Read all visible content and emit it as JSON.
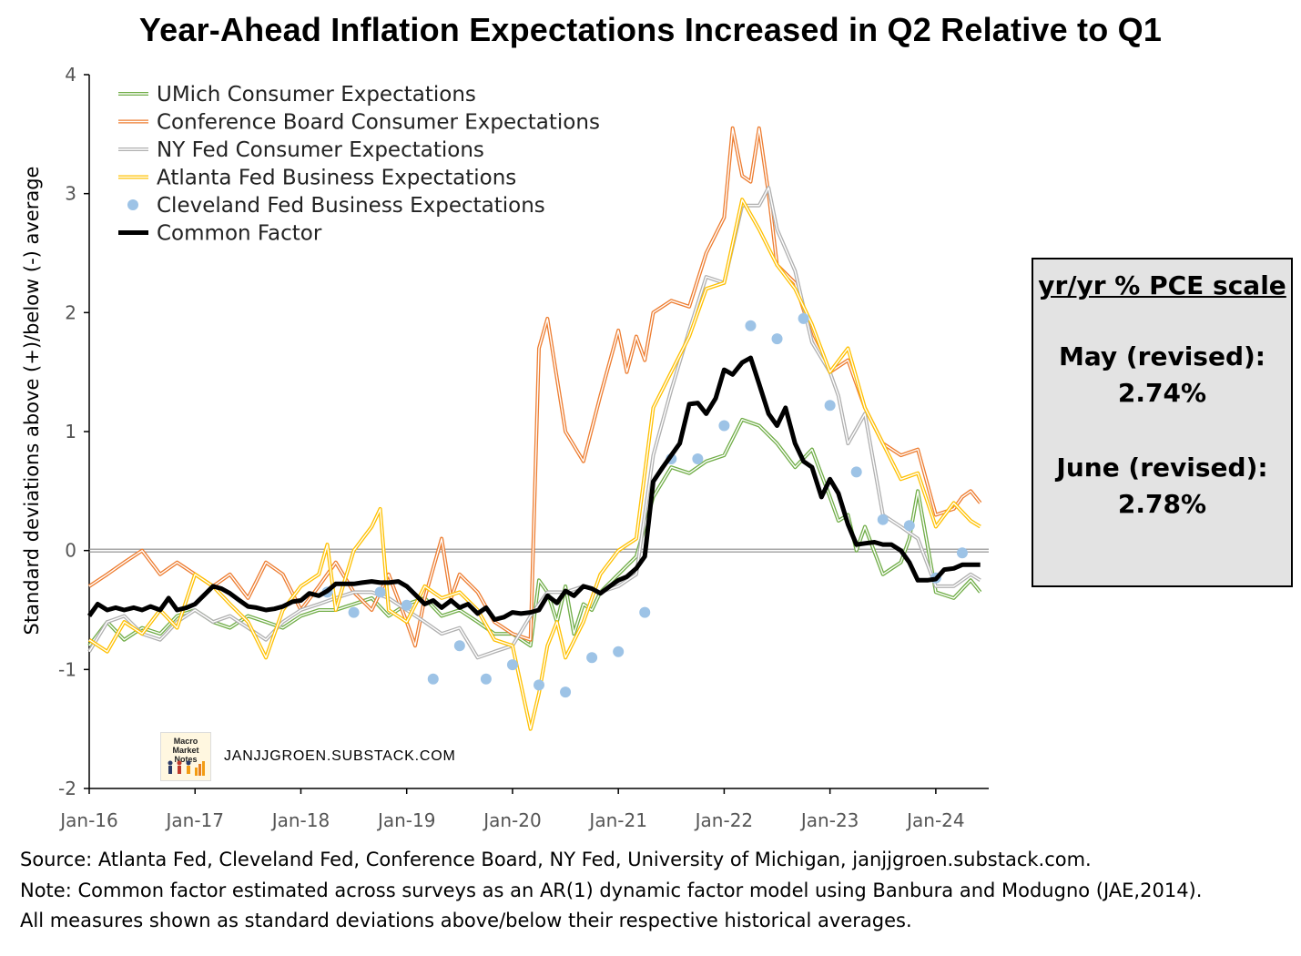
{
  "title": "Year-Ahead Inflation Expectations Increased in Q2 Relative to Q1",
  "chart_data": {
    "type": "line",
    "ylabel": "Standard deviations above (+)/below (-) average",
    "xlabel": "",
    "ylim": [
      -2,
      4
    ],
    "yticks": [
      "4",
      "3",
      "2",
      "1",
      "0",
      "-1",
      "-2"
    ],
    "ytick_values": [
      4,
      3,
      2,
      1,
      0,
      -1,
      -2
    ],
    "xtick_labels": [
      "Jan-16",
      "Jan-17",
      "Jan-18",
      "Jan-19",
      "Jan-20",
      "Jan-21",
      "Jan-22",
      "Jan-23",
      "Jan-24"
    ],
    "xtick_values": [
      2016.0,
      2017.0,
      2018.0,
      2019.0,
      2020.0,
      2021.0,
      2022.0,
      2023.0,
      2024.0
    ],
    "xlim": [
      2016.0,
      2024.5
    ],
    "legend_position": "top-left",
    "series": [
      {
        "name": "UMich Consumer Expectations",
        "style": "double-line",
        "color": "#70ad47",
        "x": [
          2016.0,
          2016.17,
          2016.33,
          2016.5,
          2016.67,
          2016.83,
          2017.0,
          2017.17,
          2017.33,
          2017.5,
          2017.67,
          2017.83,
          2018.0,
          2018.17,
          2018.33,
          2018.5,
          2018.67,
          2018.83,
          2019.0,
          2019.17,
          2019.33,
          2019.5,
          2019.67,
          2019.83,
          2020.0,
          2020.17,
          2020.25,
          2020.33,
          2020.42,
          2020.5,
          2020.58,
          2020.67,
          2020.75,
          2020.83,
          2021.0,
          2021.17,
          2021.33,
          2021.5,
          2021.67,
          2021.83,
          2022.0,
          2022.17,
          2022.33,
          2022.5,
          2022.67,
          2022.83,
          2023.0,
          2023.08,
          2023.17,
          2023.25,
          2023.33,
          2023.5,
          2023.67,
          2023.75,
          2023.83,
          2024.0,
          2024.17,
          2024.33,
          2024.42
        ],
        "y": [
          -0.8,
          -0.6,
          -0.75,
          -0.65,
          -0.7,
          -0.55,
          -0.5,
          -0.6,
          -0.65,
          -0.55,
          -0.6,
          -0.65,
          -0.55,
          -0.5,
          -0.5,
          -0.45,
          -0.4,
          -0.55,
          -0.45,
          -0.4,
          -0.55,
          -0.5,
          -0.6,
          -0.7,
          -0.7,
          -0.8,
          -0.25,
          -0.35,
          -0.6,
          -0.3,
          -0.7,
          -0.45,
          -0.5,
          -0.35,
          -0.2,
          -0.05,
          0.45,
          0.7,
          0.65,
          0.75,
          0.8,
          1.1,
          1.05,
          0.9,
          0.7,
          0.85,
          0.45,
          0.25,
          0.3,
          0.0,
          0.2,
          -0.2,
          -0.1,
          0.1,
          0.5,
          -0.35,
          -0.4,
          -0.25,
          -0.35
        ]
      },
      {
        "name": "Conference Board Consumer Expectations",
        "style": "double-line",
        "color": "#ed7d31",
        "x": [
          2016.0,
          2016.17,
          2016.33,
          2016.5,
          2016.67,
          2016.83,
          2017.0,
          2017.17,
          2017.33,
          2017.5,
          2017.67,
          2017.83,
          2018.0,
          2018.17,
          2018.33,
          2018.5,
          2018.67,
          2018.83,
          2019.0,
          2019.08,
          2019.17,
          2019.33,
          2019.42,
          2019.5,
          2019.67,
          2019.83,
          2020.0,
          2020.17,
          2020.25,
          2020.33,
          2020.5,
          2020.67,
          2020.83,
          2021.0,
          2021.08,
          2021.17,
          2021.25,
          2021.33,
          2021.5,
          2021.67,
          2021.83,
          2022.0,
          2022.08,
          2022.17,
          2022.25,
          2022.33,
          2022.42,
          2022.5,
          2022.67,
          2022.83,
          2023.0,
          2023.17,
          2023.33,
          2023.5,
          2023.67,
          2023.83,
          2024.0,
          2024.17,
          2024.25,
          2024.33,
          2024.42
        ],
        "y": [
          -0.3,
          -0.2,
          -0.1,
          0.0,
          -0.2,
          -0.1,
          -0.2,
          -0.3,
          -0.2,
          -0.4,
          -0.1,
          -0.2,
          -0.5,
          -0.3,
          -0.1,
          -0.35,
          -0.5,
          -0.2,
          -0.6,
          -0.8,
          -0.4,
          0.1,
          -0.4,
          -0.2,
          -0.35,
          -0.6,
          -0.7,
          -0.75,
          1.7,
          1.95,
          1.0,
          0.75,
          1.3,
          1.85,
          1.5,
          1.8,
          1.6,
          2.0,
          2.1,
          2.05,
          2.5,
          2.8,
          3.55,
          3.15,
          3.1,
          3.55,
          3.0,
          2.4,
          2.25,
          1.8,
          1.5,
          1.6,
          1.2,
          0.9,
          0.8,
          0.85,
          0.3,
          0.35,
          0.45,
          0.5,
          0.4
        ]
      },
      {
        "name": "NY Fed Consumer Expectations",
        "style": "double-line",
        "color": "#b0b0b0",
        "x": [
          2016.0,
          2016.17,
          2016.33,
          2016.5,
          2016.67,
          2016.83,
          2017.0,
          2017.17,
          2017.33,
          2017.5,
          2017.67,
          2017.83,
          2018.0,
          2018.17,
          2018.33,
          2018.5,
          2018.67,
          2018.83,
          2019.0,
          2019.17,
          2019.33,
          2019.5,
          2019.67,
          2019.83,
          2020.0,
          2020.17,
          2020.33,
          2020.5,
          2020.67,
          2020.83,
          2021.0,
          2021.17,
          2021.33,
          2021.5,
          2021.67,
          2021.83,
          2022.0,
          2022.17,
          2022.33,
          2022.42,
          2022.5,
          2022.67,
          2022.83,
          2023.0,
          2023.08,
          2023.17,
          2023.33,
          2023.5,
          2023.67,
          2023.83,
          2024.0,
          2024.17,
          2024.33,
          2024.42
        ],
        "y": [
          -0.85,
          -0.6,
          -0.55,
          -0.7,
          -0.75,
          -0.6,
          -0.5,
          -0.6,
          -0.55,
          -0.65,
          -0.75,
          -0.6,
          -0.5,
          -0.45,
          -0.4,
          -0.35,
          -0.35,
          -0.4,
          -0.5,
          -0.6,
          -0.7,
          -0.65,
          -0.9,
          -0.85,
          -0.8,
          -0.55,
          -0.35,
          -0.35,
          -0.3,
          -0.35,
          -0.3,
          -0.2,
          0.8,
          1.35,
          1.85,
          2.3,
          2.25,
          2.9,
          2.9,
          3.05,
          2.7,
          2.35,
          1.75,
          1.5,
          1.3,
          0.9,
          1.15,
          0.3,
          0.2,
          0.1,
          -0.3,
          -0.3,
          -0.2,
          -0.25
        ]
      },
      {
        "name": "Atlanta Fed Business Expectations",
        "style": "double-line",
        "color": "#ffc000",
        "x": [
          2016.0,
          2016.17,
          2016.33,
          2016.5,
          2016.67,
          2016.83,
          2017.0,
          2017.17,
          2017.33,
          2017.5,
          2017.67,
          2017.83,
          2018.0,
          2018.17,
          2018.25,
          2018.33,
          2018.5,
          2018.67,
          2018.75,
          2018.83,
          2019.0,
          2019.17,
          2019.33,
          2019.5,
          2019.67,
          2019.83,
          2020.0,
          2020.17,
          2020.25,
          2020.33,
          2020.42,
          2020.5,
          2020.67,
          2020.83,
          2021.0,
          2021.17,
          2021.33,
          2021.5,
          2021.67,
          2021.83,
          2022.0,
          2022.17,
          2022.33,
          2022.5,
          2022.67,
          2022.83,
          2023.0,
          2023.17,
          2023.33,
          2023.5,
          2023.67,
          2023.83,
          2024.0,
          2024.17,
          2024.33,
          2024.42
        ],
        "y": [
          -0.75,
          -0.85,
          -0.6,
          -0.7,
          -0.5,
          -0.65,
          -0.2,
          -0.3,
          -0.45,
          -0.6,
          -0.9,
          -0.5,
          -0.3,
          -0.2,
          0.05,
          -0.5,
          0.0,
          0.2,
          0.35,
          -0.5,
          -0.6,
          -0.3,
          -0.4,
          -0.35,
          -0.5,
          -0.75,
          -0.8,
          -1.5,
          -1.2,
          -0.8,
          -0.6,
          -0.9,
          -0.6,
          -0.2,
          0.0,
          0.1,
          1.2,
          1.5,
          1.8,
          2.2,
          2.25,
          2.95,
          2.7,
          2.4,
          2.2,
          1.9,
          1.5,
          1.7,
          1.2,
          0.9,
          0.6,
          0.65,
          0.2,
          0.4,
          0.25,
          0.2
        ]
      },
      {
        "name": "Cleveland Fed Business Expectations",
        "style": "dots",
        "color": "#9dc3e6",
        "x": [
          2018.25,
          2018.5,
          2018.75,
          2019.0,
          2019.25,
          2019.5,
          2019.75,
          2020.0,
          2020.25,
          2020.5,
          2020.75,
          2021.0,
          2021.25,
          2021.5,
          2021.75,
          2022.0,
          2022.25,
          2022.5,
          2022.75,
          2023.0,
          2023.25,
          2023.5,
          2023.75,
          2024.0,
          2024.25
        ],
        "y": [
          -0.35,
          -0.52,
          -0.35,
          -0.46,
          -1.08,
          -0.8,
          -1.08,
          -0.96,
          -1.13,
          -1.19,
          -0.9,
          -0.85,
          -0.52,
          0.77,
          0.77,
          1.05,
          1.89,
          1.78,
          1.95,
          1.22,
          0.66,
          0.26,
          0.21,
          -0.23,
          -0.02
        ]
      },
      {
        "name": "Common Factor",
        "style": "thick-line",
        "color": "#000000",
        "x": [
          2016.0,
          2016.08,
          2016.17,
          2016.25,
          2016.33,
          2016.42,
          2016.5,
          2016.58,
          2016.67,
          2016.75,
          2016.83,
          2016.92,
          2017.0,
          2017.08,
          2017.17,
          2017.25,
          2017.33,
          2017.42,
          2017.5,
          2017.58,
          2017.67,
          2017.75,
          2017.83,
          2017.92,
          2018.0,
          2018.08,
          2018.17,
          2018.25,
          2018.33,
          2018.42,
          2018.5,
          2018.58,
          2018.67,
          2018.75,
          2018.83,
          2018.92,
          2019.0,
          2019.08,
          2019.17,
          2019.25,
          2019.33,
          2019.42,
          2019.5,
          2019.58,
          2019.67,
          2019.75,
          2019.83,
          2019.92,
          2020.0,
          2020.08,
          2020.17,
          2020.25,
          2020.33,
          2020.42,
          2020.5,
          2020.58,
          2020.67,
          2020.75,
          2020.83,
          2020.92,
          2021.0,
          2021.08,
          2021.17,
          2021.25,
          2021.33,
          2021.42,
          2021.5,
          2021.58,
          2021.67,
          2021.75,
          2021.83,
          2021.92,
          2022.0,
          2022.08,
          2022.17,
          2022.25,
          2022.33,
          2022.42,
          2022.5,
          2022.58,
          2022.67,
          2022.75,
          2022.83,
          2022.92,
          2023.0,
          2023.08,
          2023.17,
          2023.25,
          2023.33,
          2023.42,
          2023.5,
          2023.58,
          2023.67,
          2023.75,
          2023.83,
          2023.92,
          2024.0,
          2024.08,
          2024.17,
          2024.25,
          2024.33,
          2024.42
        ],
        "y": [
          -0.55,
          -0.45,
          -0.5,
          -0.48,
          -0.5,
          -0.48,
          -0.5,
          -0.47,
          -0.5,
          -0.4,
          -0.5,
          -0.48,
          -0.45,
          -0.38,
          -0.3,
          -0.32,
          -0.36,
          -0.42,
          -0.47,
          -0.48,
          -0.5,
          -0.49,
          -0.47,
          -0.43,
          -0.42,
          -0.36,
          -0.38,
          -0.34,
          -0.28,
          -0.28,
          -0.28,
          -0.27,
          -0.26,
          -0.27,
          -0.27,
          -0.26,
          -0.3,
          -0.37,
          -0.45,
          -0.42,
          -0.48,
          -0.42,
          -0.48,
          -0.45,
          -0.53,
          -0.48,
          -0.58,
          -0.56,
          -0.52,
          -0.53,
          -0.52,
          -0.5,
          -0.38,
          -0.44,
          -0.34,
          -0.38,
          -0.3,
          -0.32,
          -0.36,
          -0.3,
          -0.25,
          -0.22,
          -0.15,
          -0.05,
          0.58,
          0.7,
          0.8,
          0.9,
          1.23,
          1.24,
          1.15,
          1.28,
          1.52,
          1.48,
          1.58,
          1.62,
          1.4,
          1.15,
          1.05,
          1.2,
          0.9,
          0.75,
          0.7,
          0.45,
          0.6,
          0.48,
          0.22,
          0.05,
          0.06,
          0.07,
          0.05,
          0.05,
          0.0,
          -0.1,
          -0.25,
          -0.25,
          -0.24,
          -0.16,
          -0.15,
          -0.12,
          -0.12,
          -0.12
        ]
      }
    ]
  },
  "pce_box": {
    "title": "yr/yr % PCE scale",
    "may_label": "May (revised):",
    "may_value": "2.74%",
    "june_label": "June (revised):",
    "june_value": "2.78%"
  },
  "watermark": {
    "logo_text": "Macro Market Notes",
    "site": "JANJJGROEN.SUBSTACK.COM"
  },
  "footer": {
    "source": "Source: Atlanta Fed, Cleveland Fed, Conference Board, NY Fed, University of Michigan, janjjgroen.substack.com.",
    "note": "Note: Common factor estimated  across surveys as an AR(1) dynamic factor model using Banbura and Modugno (JAE,2014).",
    "measures": "All measures shown as standard deviations above/below their respective historical averages."
  }
}
